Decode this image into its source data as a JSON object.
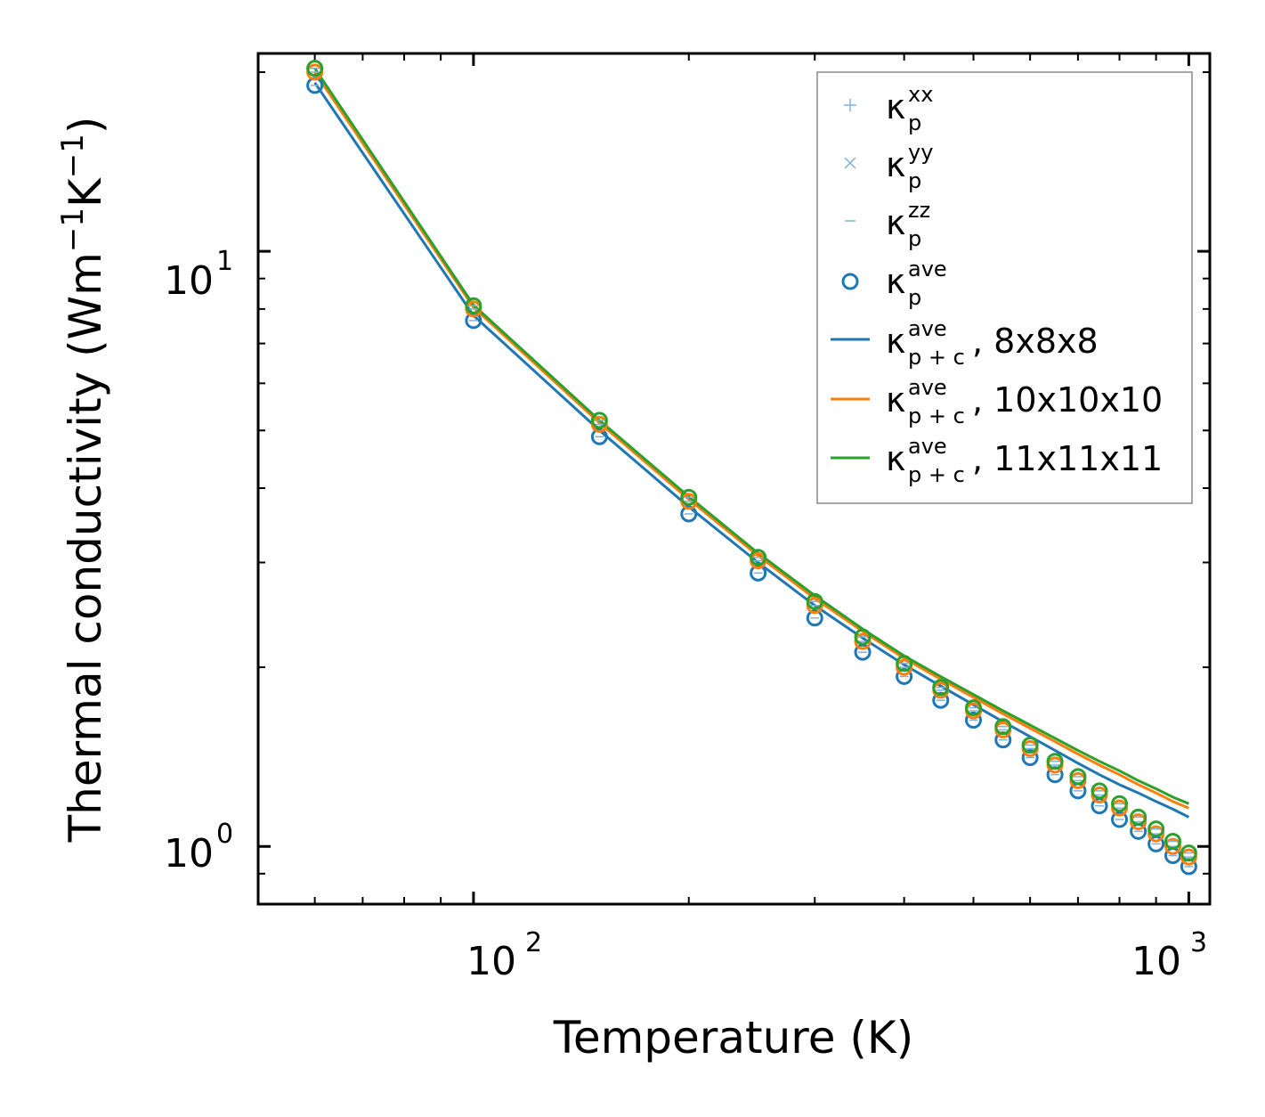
{
  "chart_data": {
    "type": "scatter",
    "xscale": "log",
    "yscale": "log",
    "xlabel": "Temperature (K)",
    "ylabel": {
      "main": "Thermal conductivity (Wm",
      "sup1": "−1",
      "mid": "K",
      "sup2": "−1",
      "end": ")"
    },
    "xlim": [
      50,
      1070
    ],
    "ylim": [
      0.8,
      21.5
    ],
    "xticks": [
      {
        "value": 100,
        "base": "10",
        "exp": "2"
      },
      {
        "value": 1000,
        "base": "10",
        "exp": "3"
      }
    ],
    "yticks": [
      {
        "value": 1,
        "base": "10",
        "exp": "0"
      },
      {
        "value": 10,
        "base": "10",
        "exp": "1"
      }
    ],
    "x": [
      60,
      100,
      150,
      200,
      250,
      300,
      350,
      400,
      450,
      500,
      550,
      600,
      650,
      700,
      750,
      800,
      850,
      900,
      950,
      1000
    ],
    "markers": [
      {
        "name": "8x8x8",
        "color": "#1f77b4",
        "values": [
          19.0,
          7.65,
          4.88,
          3.62,
          2.88,
          2.42,
          2.12,
          1.93,
          1.76,
          1.63,
          1.51,
          1.41,
          1.32,
          1.24,
          1.17,
          1.11,
          1.06,
          1.01,
          0.965,
          0.925
        ]
      },
      {
        "name": "10x10x10",
        "color": "#ff7f0e",
        "values": [
          20.0,
          8.0,
          5.12,
          3.8,
          3.02,
          2.54,
          2.21,
          2.0,
          1.83,
          1.69,
          1.57,
          1.46,
          1.37,
          1.29,
          1.22,
          1.16,
          1.1,
          1.05,
          1.0,
          0.96
        ]
      },
      {
        "name": "11x11x11",
        "color": "#2ca02c",
        "values": [
          20.3,
          8.1,
          5.2,
          3.86,
          3.06,
          2.58,
          2.25,
          2.03,
          1.85,
          1.71,
          1.59,
          1.48,
          1.39,
          1.31,
          1.24,
          1.18,
          1.12,
          1.07,
          1.02,
          0.975
        ]
      }
    ],
    "series": [
      {
        "name": "8x8x8",
        "color": "#1f77b4",
        "values": [
          19.2,
          7.8,
          5.0,
          3.72,
          3.0,
          2.54,
          2.24,
          2.02,
          1.86,
          1.73,
          1.62,
          1.53,
          1.45,
          1.38,
          1.32,
          1.27,
          1.23,
          1.19,
          1.155,
          1.12
        ]
      },
      {
        "name": "10x10x10",
        "color": "#ff7f0e",
        "values": [
          20.0,
          8.05,
          5.15,
          3.83,
          3.08,
          2.61,
          2.3,
          2.07,
          1.91,
          1.78,
          1.67,
          1.58,
          1.5,
          1.43,
          1.37,
          1.32,
          1.27,
          1.23,
          1.19,
          1.16
        ]
      },
      {
        "name": "11x11x11",
        "color": "#2ca02c",
        "values": [
          20.3,
          8.12,
          5.2,
          3.87,
          3.11,
          2.64,
          2.32,
          2.09,
          1.93,
          1.8,
          1.69,
          1.6,
          1.52,
          1.45,
          1.39,
          1.34,
          1.29,
          1.25,
          1.21,
          1.18
        ]
      }
    ],
    "legend": {
      "position": "upper right",
      "entries": [
        {
          "marker": "plus",
          "color": "#7fb2d9",
          "sym": "κ",
          "sub": "p",
          "sup": "xx",
          "suffix": ""
        },
        {
          "marker": "x",
          "color": "#7fb2d9",
          "sym": "κ",
          "sub": "p",
          "sup": "yy",
          "suffix": ""
        },
        {
          "marker": "dash",
          "color": "#7fb2d9",
          "sym": "κ",
          "sub": "p",
          "sup": "zz",
          "suffix": ""
        },
        {
          "marker": "circle",
          "color": "#1f77b4",
          "sym": "κ",
          "sub": "p",
          "sup": "ave",
          "suffix": ""
        },
        {
          "marker": "line",
          "color": "#1f77b4",
          "sym": "κ",
          "sub": "p + c",
          "sup": "ave",
          "suffix": ", 8x8x8"
        },
        {
          "marker": "line",
          "color": "#ff7f0e",
          "sym": "κ",
          "sub": "p + c",
          "sup": "ave",
          "suffix": ", 10x10x10"
        },
        {
          "marker": "line",
          "color": "#2ca02c",
          "sym": "κ",
          "sub": "p + c",
          "sup": "ave",
          "suffix": ", 11x11x11"
        }
      ]
    }
  }
}
